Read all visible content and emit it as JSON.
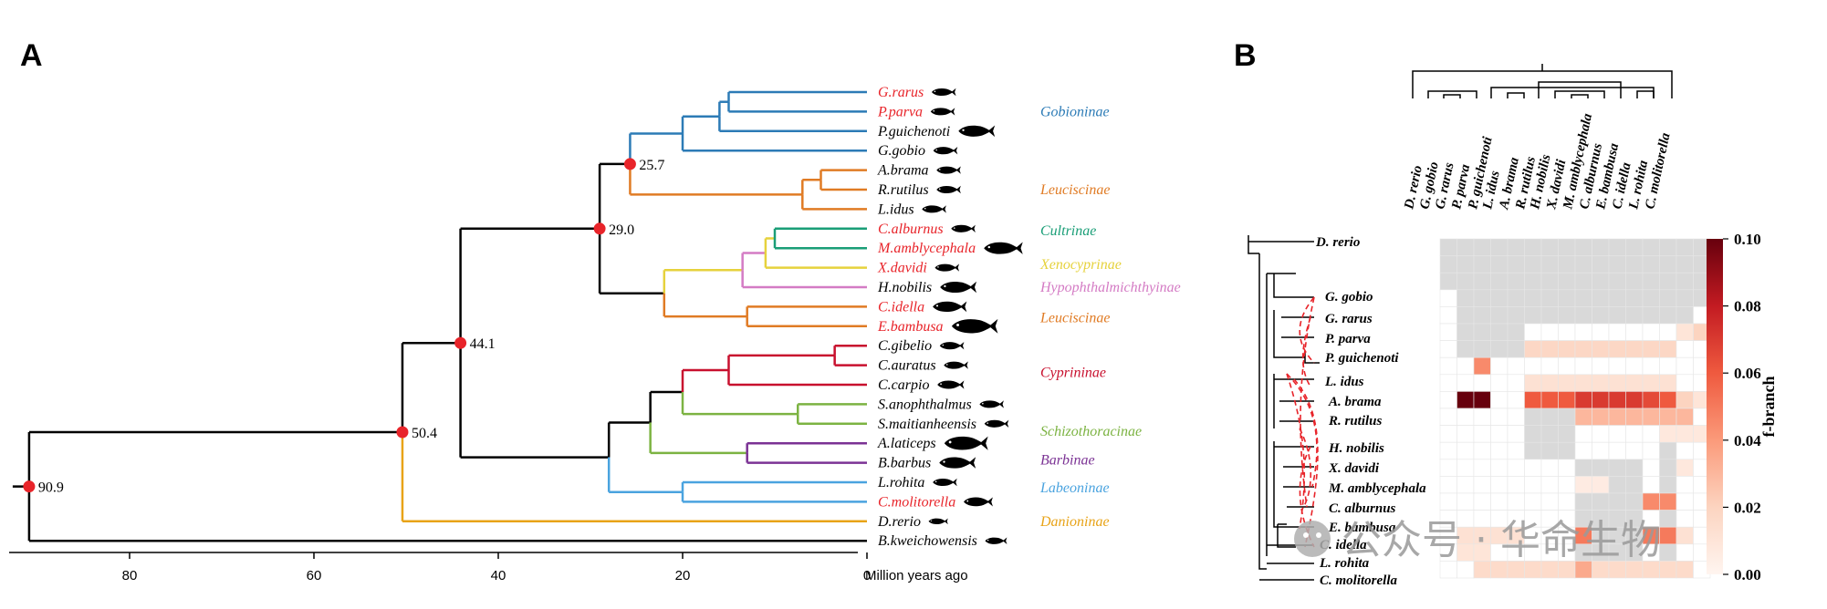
{
  "panel_a": {
    "label": "A",
    "axis_label": "Million years ago",
    "ticks": [
      "80",
      "60",
      "40",
      "20",
      "0"
    ],
    "node_ages": [
      {
        "id": "root",
        "text": "90.9"
      },
      {
        "id": "n50",
        "text": "50.4"
      },
      {
        "id": "n44",
        "text": "44.1"
      },
      {
        "id": "n29",
        "text": "29.0"
      },
      {
        "id": "n25",
        "text": "25.7"
      }
    ],
    "tips": [
      {
        "name": "G.rarus",
        "color": "#e8242a"
      },
      {
        "name": "P.parva",
        "color": "#e8242a"
      },
      {
        "name": "P.guichenoti",
        "color": "#000000"
      },
      {
        "name": "G.gobio",
        "color": "#000000"
      },
      {
        "name": "A.brama",
        "color": "#000000"
      },
      {
        "name": "R.rutilus",
        "color": "#000000"
      },
      {
        "name": "L.idus",
        "color": "#000000"
      },
      {
        "name": "C.alburnus",
        "color": "#e8242a"
      },
      {
        "name": "M.amblycephala",
        "color": "#e8242a"
      },
      {
        "name": "X.davidi",
        "color": "#e8242a"
      },
      {
        "name": "H.nobilis",
        "color": "#000000"
      },
      {
        "name": "C.idella",
        "color": "#e8242a"
      },
      {
        "name": "E.bambusa",
        "color": "#e8242a"
      },
      {
        "name": "C.gibelio",
        "color": "#000000"
      },
      {
        "name": "C.auratus",
        "color": "#000000"
      },
      {
        "name": "C.carpio",
        "color": "#000000"
      },
      {
        "name": "S.anophthalmus",
        "color": "#000000"
      },
      {
        "name": "S.maitianheensis",
        "color": "#000000"
      },
      {
        "name": "A.laticeps",
        "color": "#000000"
      },
      {
        "name": "B.barbus",
        "color": "#000000"
      },
      {
        "name": "L.rohita",
        "color": "#000000"
      },
      {
        "name": "C.molitorella",
        "color": "#e8242a"
      },
      {
        "name": "D.rerio",
        "color": "#000000"
      },
      {
        "name": "B.kweichowensis",
        "color": "#000000"
      }
    ],
    "clades": [
      {
        "name": "Gobioninae",
        "color": "#2c7bb6"
      },
      {
        "name": "Leuciscinae",
        "color": "#e07b24"
      },
      {
        "name": "Cultrinae",
        "color": "#1a9e77"
      },
      {
        "name": "Xenocyprinae",
        "color": "#e6d23c"
      },
      {
        "name": "Hypophthalmichthyinae",
        "color": "#d47bc4"
      },
      {
        "name": "Leuciscinae",
        "color": "#e07b24"
      },
      {
        "name": "Cyprininae",
        "color": "#c8102e"
      },
      {
        "name": "Schizothoracinae",
        "color": "#7cb342"
      },
      {
        "name": "Barbinae",
        "color": "#7b3294"
      },
      {
        "name": "Labeoninae",
        "color": "#4aa3df"
      },
      {
        "name": "Danioninae",
        "color": "#e8a317"
      }
    ]
  },
  "panel_b": {
    "label": "B",
    "col_labels": [
      "D. rerio",
      "G. gobio",
      "G. rarus",
      "P. parva",
      "P. guichenoti",
      "L. idus",
      "A. brama",
      "R. rutilus",
      "H. nobilis",
      "X. davidi",
      "M. amblycephala",
      "C. alburnus",
      "E. bambusa",
      "C. idella",
      "L. rohita",
      "C. molitorella"
    ],
    "row_labels": [
      "D. rerio",
      "G. gobio",
      "G. rarus",
      "P. parva",
      "P. guichenoti",
      "L. idus",
      "A. brama",
      "R. rutilus",
      "H. nobilis",
      "X. davidi",
      "M. amblycephala",
      "C. alburnus",
      "E. bambusa",
      "C. idella",
      "L. rohita",
      "C. molitorella"
    ],
    "colorbar": {
      "title": "f-branch",
      "ticks": [
        "0.00",
        "0.02",
        "0.04",
        "0.06",
        "0.08",
        "0.10"
      ]
    }
  },
  "watermark": "公众号 · 华命生物"
}
